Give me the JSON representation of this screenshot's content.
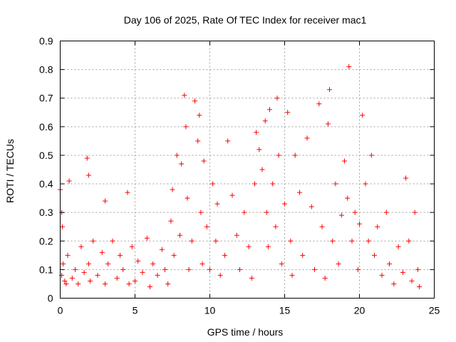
{
  "chart_data": {
    "type": "scatter",
    "title": "Day 106 of 2025, Rate Of TEC Index for receiver mac1",
    "xlabel": "GPS time / hours",
    "ylabel": "ROTI / TECUs",
    "xlim": [
      0,
      25
    ],
    "ylim": [
      0,
      0.9
    ],
    "xticks": [
      "0",
      "5",
      "10",
      "15",
      "20",
      "25"
    ],
    "yticks": [
      "0",
      "0.1",
      "0.2",
      "0.3",
      "0.4",
      "0.5",
      "0.6",
      "0.7",
      "0.8",
      "0.9"
    ],
    "grid": true,
    "marker": "+",
    "color": "#ff0000",
    "series": [
      {
        "x": [
          0.0,
          0.1,
          0.1,
          0.15,
          0.2,
          0.3,
          0.4,
          0.5,
          0.6,
          0.8,
          1.0,
          1.2,
          1.4,
          1.6,
          1.8,
          1.9,
          1.9,
          2.0,
          2.2,
          2.5,
          2.8,
          3.0,
          3.0,
          3.2,
          3.5,
          3.8,
          4.0,
          4.2,
          4.5,
          4.6,
          4.8,
          5.0,
          5.2,
          5.5,
          5.8,
          6.0,
          6.2,
          6.5,
          6.8,
          7.0,
          7.2,
          7.4,
          7.5,
          7.6,
          7.8,
          8.0,
          8.1,
          8.3,
          8.4,
          8.5,
          8.6,
          8.8,
          9.0,
          9.2,
          9.3,
          9.4,
          9.5,
          9.6,
          9.8,
          10.0,
          10.2,
          10.4,
          10.5,
          10.7,
          11.0,
          11.2,
          11.5,
          11.8,
          12.0,
          12.3,
          12.6,
          12.8,
          13.0,
          13.1,
          13.3,
          13.5,
          13.7,
          13.8,
          13.9,
          14.0,
          14.2,
          14.4,
          14.5,
          14.6,
          14.8,
          15.0,
          15.2,
          15.4,
          15.5,
          15.7,
          16.0,
          16.2,
          16.5,
          16.8,
          17.0,
          17.3,
          17.5,
          17.7,
          17.9,
          18.0,
          18.2,
          18.4,
          18.6,
          18.8,
          19.0,
          19.2,
          19.3,
          19.5,
          19.7,
          19.9,
          20.0,
          20.2,
          20.4,
          20.6,
          20.8,
          21.0,
          21.2,
          21.5,
          21.8,
          22.0,
          22.3,
          22.6,
          22.9,
          23.1,
          23.3,
          23.5,
          23.7,
          23.9,
          24.0
        ],
        "y": [
          0.38,
          0.3,
          0.08,
          0.25,
          0.12,
          0.06,
          0.05,
          0.15,
          0.41,
          0.07,
          0.1,
          0.05,
          0.18,
          0.09,
          0.49,
          0.43,
          0.12,
          0.06,
          0.2,
          0.08,
          0.16,
          0.34,
          0.05,
          0.12,
          0.2,
          0.07,
          0.15,
          0.1,
          0.37,
          0.05,
          0.18,
          0.06,
          0.13,
          0.09,
          0.21,
          0.04,
          0.12,
          0.08,
          0.17,
          0.1,
          0.05,
          0.27,
          0.38,
          0.15,
          0.5,
          0.22,
          0.47,
          0.71,
          0.6,
          0.35,
          0.1,
          0.2,
          0.69,
          0.55,
          0.64,
          0.3,
          0.12,
          0.48,
          0.25,
          0.1,
          0.4,
          0.2,
          0.33,
          0.08,
          0.15,
          0.55,
          0.36,
          0.22,
          0.1,
          0.3,
          0.18,
          0.07,
          0.4,
          0.58,
          0.52,
          0.45,
          0.62,
          0.3,
          0.18,
          0.66,
          0.4,
          0.25,
          0.7,
          0.5,
          0.12,
          0.33,
          0.65,
          0.2,
          0.08,
          0.5,
          0.37,
          0.15,
          0.56,
          0.32,
          0.1,
          0.68,
          0.25,
          0.07,
          0.61,
          0.73,
          0.2,
          0.4,
          0.12,
          0.29,
          0.48,
          0.35,
          0.81,
          0.2,
          0.3,
          0.1,
          0.26,
          0.64,
          0.4,
          0.2,
          0.5,
          0.15,
          0.25,
          0.08,
          0.3,
          0.12,
          0.05,
          0.18,
          0.09,
          0.42,
          0.2,
          0.06,
          0.3,
          0.1,
          0.04
        ]
      }
    ]
  }
}
